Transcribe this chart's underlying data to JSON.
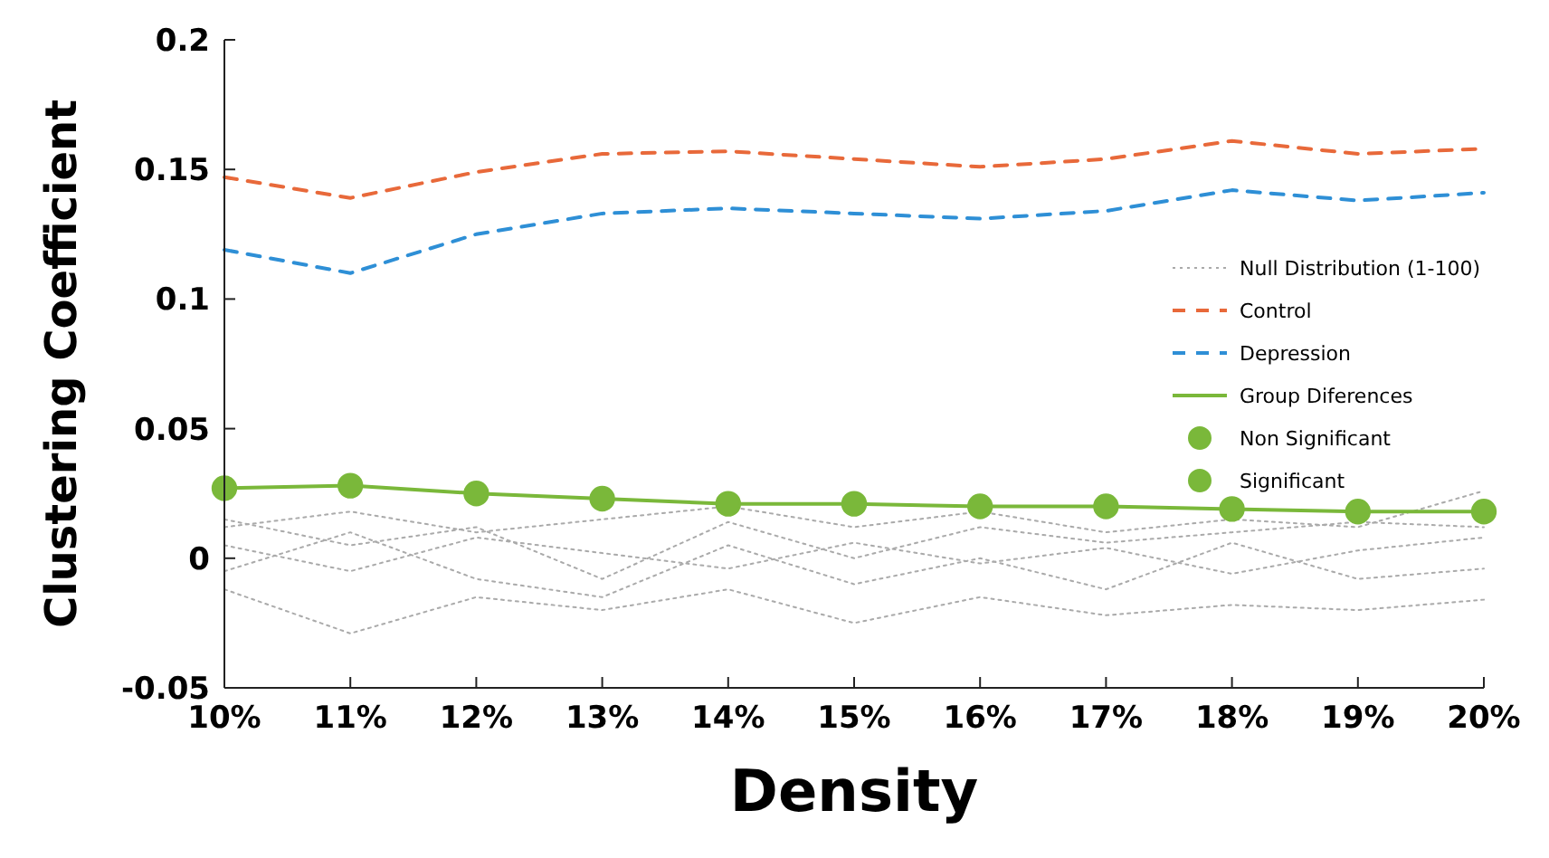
{
  "chart_data": {
    "type": "line",
    "xlabel": "Density",
    "ylabel": "Clustering Coefficient",
    "x": [
      10,
      11,
      12,
      13,
      14,
      15,
      16,
      17,
      18,
      19,
      20
    ],
    "xlim": [
      10,
      20
    ],
    "xticks": [
      {
        "value": 10,
        "label": "10%"
      },
      {
        "value": 11,
        "label": "11%"
      },
      {
        "value": 12,
        "label": "12%"
      },
      {
        "value": 13,
        "label": "13%"
      },
      {
        "value": 14,
        "label": "14%"
      },
      {
        "value": 15,
        "label": "15%"
      },
      {
        "value": 16,
        "label": "16%"
      },
      {
        "value": 17,
        "label": "17%"
      },
      {
        "value": 18,
        "label": "18%"
      },
      {
        "value": 19,
        "label": "19%"
      },
      {
        "value": 20,
        "label": "20%"
      }
    ],
    "ylim": [
      -0.05,
      0.2
    ],
    "yticks": [
      -0.05,
      0,
      0.05,
      0.1,
      0.15,
      0.2
    ],
    "grid": false,
    "legend": "right",
    "marker": "none",
    "series": [
      {
        "name": "Null Distribution (1-100)",
        "color": "#aaaaaa",
        "line_style": "dotted",
        "values": [
          0.012,
          0.018,
          0.01,
          0.015,
          0.02,
          0.012,
          0.018,
          0.01,
          0.015,
          0.012,
          0.026
        ]
      },
      {
        "color": "#aaaaaa",
        "line_style": "dotted",
        "values": [
          -0.012,
          -0.029,
          -0.015,
          -0.02,
          -0.012,
          -0.025,
          -0.015,
          -0.022,
          -0.018,
          -0.02,
          -0.016
        ]
      },
      {
        "color": "#aaaaaa",
        "line_style": "dotted",
        "values": [
          0.005,
          -0.005,
          0.008,
          0.002,
          -0.004,
          0.006,
          -0.002,
          0.004,
          -0.006,
          0.003,
          0.008
        ]
      },
      {
        "color": "#aaaaaa",
        "line_style": "dotted",
        "values": [
          -0.005,
          0.01,
          -0.008,
          -0.015,
          0.005,
          -0.01,
          0.0,
          -0.012,
          0.006,
          -0.008,
          -0.004
        ]
      },
      {
        "color": "#aaaaaa",
        "line_style": "dotted",
        "values": [
          0.015,
          0.005,
          0.012,
          -0.008,
          0.014,
          0.0,
          0.012,
          0.006,
          0.01,
          0.014,
          0.012
        ]
      },
      {
        "name": "Control",
        "color": "#e8693a",
        "line_style": "dashed",
        "values": [
          0.147,
          0.139,
          0.149,
          0.156,
          0.157,
          0.154,
          0.151,
          0.154,
          0.161,
          0.156,
          0.158
        ]
      },
      {
        "name": "Depression",
        "color": "#2e8fd6",
        "line_style": "dashed",
        "values": [
          0.119,
          0.11,
          0.125,
          0.133,
          0.135,
          0.133,
          0.131,
          0.134,
          0.142,
          0.138,
          0.141
        ]
      },
      {
        "name": "Group Diferences",
        "color": "#7ab83a",
        "line_style": "solid",
        "values": [
          0.027,
          0.028,
          0.025,
          0.023,
          0.021,
          0.021,
          0.02,
          0.02,
          0.019,
          0.018,
          0.018
        ]
      },
      {
        "name": "Non Significant",
        "type": "scatter",
        "marker": "circle",
        "color": "#7ab83a",
        "x": [
          20
        ],
        "values": [
          0.018
        ]
      },
      {
        "name": "Significant",
        "type": "scatter",
        "marker": "circle",
        "color": "#7ab83a",
        "x": [
          10,
          11,
          12,
          13,
          14,
          15,
          16,
          17,
          18,
          19
        ],
        "values": [
          0.027,
          0.028,
          0.025,
          0.023,
          0.021,
          0.021,
          0.02,
          0.02,
          0.019,
          0.018
        ]
      }
    ]
  }
}
